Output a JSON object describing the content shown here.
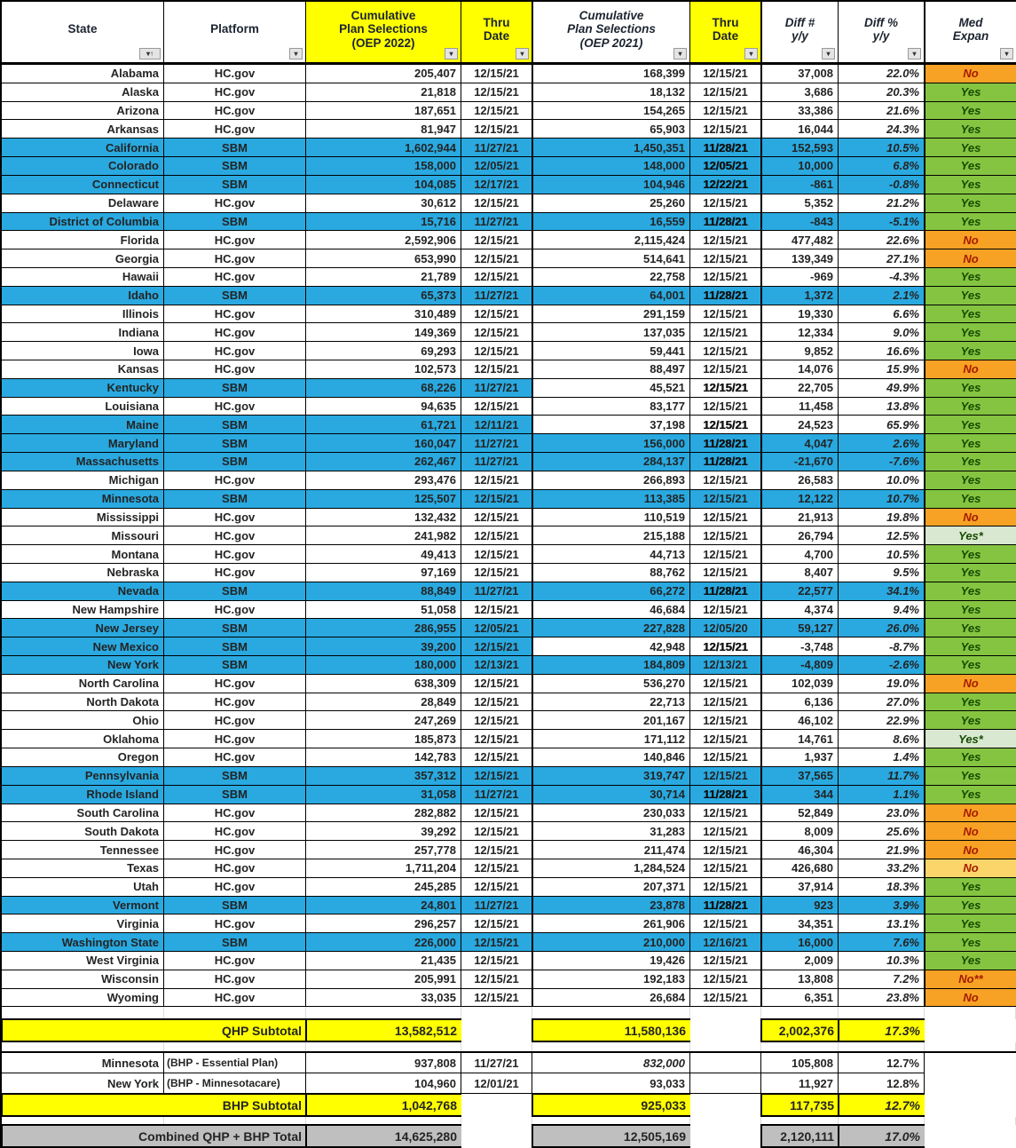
{
  "header": {
    "columns": [
      {
        "lines": [
          "State"
        ],
        "yellow": false,
        "italic": false,
        "filter": "sort-asc"
      },
      {
        "lines": [
          "Platform"
        ],
        "yellow": false,
        "italic": false,
        "filter": "plain"
      },
      {
        "lines": [
          "Cumulative",
          "Plan Selections",
          "(OEP 2022)"
        ],
        "yellow": true,
        "italic": false,
        "filter": "plain"
      },
      {
        "lines": [
          "Thru",
          "Date"
        ],
        "yellow": true,
        "italic": false,
        "filter": "plain"
      },
      {
        "lines": [
          "Cumulative",
          "Plan Selections",
          "(OEP 2021)"
        ],
        "yellow": false,
        "italic": true,
        "filter": "plain"
      },
      {
        "lines": [
          "Thru",
          "Date"
        ],
        "yellow": true,
        "italic": false,
        "filter": "plain"
      },
      {
        "lines": [
          "Diff #",
          "y/y"
        ],
        "yellow": false,
        "italic": true,
        "filter": "plain"
      },
      {
        "lines": [
          "Diff %",
          "y/y"
        ],
        "yellow": false,
        "italic": true,
        "filter": "plain"
      },
      {
        "lines": [
          "Med",
          "Expan"
        ],
        "yellow": false,
        "italic": true,
        "filter": "plain"
      }
    ],
    "filter_icon": "▾",
    "sort_icon": "▾↑"
  },
  "colors": {
    "sbm_row": "#29A9E0",
    "header_yellow": "#FFFF00",
    "med_yes": "#84C441",
    "med_yes_pale": "#D9E8D0",
    "med_no": "#F7A224",
    "med_no_light": "#FBD56A",
    "total_gray": "#BFBFBF"
  },
  "rows": [
    {
      "state": "Alabama",
      "platform": "HC.gov",
      "sel2022": "205,407",
      "thru2022": "12/15/21",
      "sel2021": "168,399",
      "thru2021": "12/15/21",
      "diff": "37,008",
      "diff_pct": "22.0%",
      "med": "No",
      "row_style": "hc",
      "med_style": "no",
      "thru2021_bold": false
    },
    {
      "state": "Alaska",
      "platform": "HC.gov",
      "sel2022": "21,818",
      "thru2022": "12/15/21",
      "sel2021": "18,132",
      "thru2021": "12/15/21",
      "diff": "3,686",
      "diff_pct": "20.3%",
      "med": "Yes",
      "row_style": "hc",
      "med_style": "yes",
      "thru2021_bold": false
    },
    {
      "state": "Arizona",
      "platform": "HC.gov",
      "sel2022": "187,651",
      "thru2022": "12/15/21",
      "sel2021": "154,265",
      "thru2021": "12/15/21",
      "diff": "33,386",
      "diff_pct": "21.6%",
      "med": "Yes",
      "row_style": "hc",
      "med_style": "yes",
      "thru2021_bold": false
    },
    {
      "state": "Arkansas",
      "platform": "HC.gov",
      "sel2022": "81,947",
      "thru2022": "12/15/21",
      "sel2021": "65,903",
      "thru2021": "12/15/21",
      "diff": "16,044",
      "diff_pct": "24.3%",
      "med": "Yes",
      "row_style": "hc",
      "med_style": "yes",
      "thru2021_bold": false
    },
    {
      "state": "California",
      "platform": "SBM",
      "sel2022": "1,602,944",
      "thru2022": "11/27/21",
      "sel2021": "1,450,351",
      "thru2021": "11/28/21",
      "diff": "152,593",
      "diff_pct": "10.5%",
      "med": "Yes",
      "row_style": "sbm",
      "med_style": "yes",
      "thru2021_bold": true
    },
    {
      "state": "Colorado",
      "platform": "SBM",
      "sel2022": "158,000",
      "thru2022": "12/05/21",
      "sel2021": "148,000",
      "thru2021": "12/05/21",
      "diff": "10,000",
      "diff_pct": "6.8%",
      "med": "Yes",
      "row_style": "sbm",
      "med_style": "yes",
      "thru2021_bold": true
    },
    {
      "state": "Connecticut",
      "platform": "SBM",
      "sel2022": "104,085",
      "thru2022": "12/17/21",
      "sel2021": "104,946",
      "thru2021": "12/22/21",
      "diff": "-861",
      "diff_pct": "-0.8%",
      "med": "Yes",
      "row_style": "sbm",
      "med_style": "yes",
      "thru2021_bold": true
    },
    {
      "state": "Delaware",
      "platform": "HC.gov",
      "sel2022": "30,612",
      "thru2022": "12/15/21",
      "sel2021": "25,260",
      "thru2021": "12/15/21",
      "diff": "5,352",
      "diff_pct": "21.2%",
      "med": "Yes",
      "row_style": "hc",
      "med_style": "yes",
      "thru2021_bold": false
    },
    {
      "state": "District of Columbia",
      "platform": "SBM",
      "sel2022": "15,716",
      "thru2022": "11/27/21",
      "sel2021": "16,559",
      "thru2021": "11/28/21",
      "diff": "-843",
      "diff_pct": "-5.1%",
      "med": "Yes",
      "row_style": "sbm",
      "med_style": "yes",
      "thru2021_bold": true
    },
    {
      "state": "Florida",
      "platform": "HC.gov",
      "sel2022": "2,592,906",
      "thru2022": "12/15/21",
      "sel2021": "2,115,424",
      "thru2021": "12/15/21",
      "diff": "477,482",
      "diff_pct": "22.6%",
      "med": "No",
      "row_style": "hc",
      "med_style": "no",
      "thru2021_bold": false
    },
    {
      "state": "Georgia",
      "platform": "HC.gov",
      "sel2022": "653,990",
      "thru2022": "12/15/21",
      "sel2021": "514,641",
      "thru2021": "12/15/21",
      "diff": "139,349",
      "diff_pct": "27.1%",
      "med": "No",
      "row_style": "hc",
      "med_style": "no",
      "thru2021_bold": false
    },
    {
      "state": "Hawaii",
      "platform": "HC.gov",
      "sel2022": "21,789",
      "thru2022": "12/15/21",
      "sel2021": "22,758",
      "thru2021": "12/15/21",
      "diff": "-969",
      "diff_pct": "-4.3%",
      "med": "Yes",
      "row_style": "hc",
      "med_style": "yes",
      "thru2021_bold": false
    },
    {
      "state": "Idaho",
      "platform": "SBM",
      "sel2022": "65,373",
      "thru2022": "11/27/21",
      "sel2021": "64,001",
      "thru2021": "11/28/21",
      "diff": "1,372",
      "diff_pct": "2.1%",
      "med": "Yes",
      "row_style": "sbm",
      "med_style": "yes",
      "thru2021_bold": true
    },
    {
      "state": "Illinois",
      "platform": "HC.gov",
      "sel2022": "310,489",
      "thru2022": "12/15/21",
      "sel2021": "291,159",
      "thru2021": "12/15/21",
      "diff": "19,330",
      "diff_pct": "6.6%",
      "med": "Yes",
      "row_style": "hc",
      "med_style": "yes",
      "thru2021_bold": false
    },
    {
      "state": "Indiana",
      "platform": "HC.gov",
      "sel2022": "149,369",
      "thru2022": "12/15/21",
      "sel2021": "137,035",
      "thru2021": "12/15/21",
      "diff": "12,334",
      "diff_pct": "9.0%",
      "med": "Yes",
      "row_style": "hc",
      "med_style": "yes",
      "thru2021_bold": false
    },
    {
      "state": "Iowa",
      "platform": "HC.gov",
      "sel2022": "69,293",
      "thru2022": "12/15/21",
      "sel2021": "59,441",
      "thru2021": "12/15/21",
      "diff": "9,852",
      "diff_pct": "16.6%",
      "med": "Yes",
      "row_style": "hc",
      "med_style": "yes",
      "thru2021_bold": false
    },
    {
      "state": "Kansas",
      "platform": "HC.gov",
      "sel2022": "102,573",
      "thru2022": "12/15/21",
      "sel2021": "88,497",
      "thru2021": "12/15/21",
      "diff": "14,076",
      "diff_pct": "15.9%",
      "med": "No",
      "row_style": "hc",
      "med_style": "no",
      "thru2021_bold": false
    },
    {
      "state": "Kentucky",
      "platform": "SBM",
      "sel2022": "68,226",
      "thru2022": "11/27/21",
      "sel2021": "45,521",
      "thru2021": "12/15/21",
      "diff": "22,705",
      "diff_pct": "49.9%",
      "med": "Yes",
      "row_style": "sbm2",
      "med_style": "yes",
      "thru2021_bold": true
    },
    {
      "state": "Louisiana",
      "platform": "HC.gov",
      "sel2022": "94,635",
      "thru2022": "12/15/21",
      "sel2021": "83,177",
      "thru2021": "12/15/21",
      "diff": "11,458",
      "diff_pct": "13.8%",
      "med": "Yes",
      "row_style": "hc",
      "med_style": "yes",
      "thru2021_bold": false
    },
    {
      "state": "Maine",
      "platform": "SBM",
      "sel2022": "61,721",
      "thru2022": "12/11/21",
      "sel2021": "37,198",
      "thru2021": "12/15/21",
      "diff": "24,523",
      "diff_pct": "65.9%",
      "med": "Yes",
      "row_style": "sbm2",
      "med_style": "yes",
      "thru2021_bold": true
    },
    {
      "state": "Maryland",
      "platform": "SBM",
      "sel2022": "160,047",
      "thru2022": "11/27/21",
      "sel2021": "156,000",
      "thru2021": "11/28/21",
      "diff": "4,047",
      "diff_pct": "2.6%",
      "med": "Yes",
      "row_style": "sbm",
      "med_style": "yes",
      "thru2021_bold": true
    },
    {
      "state": "Massachusetts",
      "platform": "SBM",
      "sel2022": "262,467",
      "thru2022": "11/27/21",
      "sel2021": "284,137",
      "thru2021": "11/28/21",
      "diff": "-21,670",
      "diff_pct": "-7.6%",
      "med": "Yes",
      "row_style": "sbm",
      "med_style": "yes",
      "thru2021_bold": true
    },
    {
      "state": "Michigan",
      "platform": "HC.gov",
      "sel2022": "293,476",
      "thru2022": "12/15/21",
      "sel2021": "266,893",
      "thru2021": "12/15/21",
      "diff": "26,583",
      "diff_pct": "10.0%",
      "med": "Yes",
      "row_style": "hc",
      "med_style": "yes",
      "thru2021_bold": false
    },
    {
      "state": "Minnesota",
      "platform": "SBM",
      "sel2022": "125,507",
      "thru2022": "12/15/21",
      "sel2021": "113,385",
      "thru2021": "12/15/21",
      "diff": "12,122",
      "diff_pct": "10.7%",
      "med": "Yes",
      "row_style": "sbm",
      "med_style": "yes",
      "thru2021_bold": false
    },
    {
      "state": "Mississippi",
      "platform": "HC.gov",
      "sel2022": "132,432",
      "thru2022": "12/15/21",
      "sel2021": "110,519",
      "thru2021": "12/15/21",
      "diff": "21,913",
      "diff_pct": "19.8%",
      "med": "No",
      "row_style": "hc",
      "med_style": "no",
      "thru2021_bold": false
    },
    {
      "state": "Missouri",
      "platform": "HC.gov",
      "sel2022": "241,982",
      "thru2022": "12/15/21",
      "sel2021": "215,188",
      "thru2021": "12/15/21",
      "diff": "26,794",
      "diff_pct": "12.5%",
      "med": "Yes*",
      "row_style": "hc",
      "med_style": "yes2",
      "thru2021_bold": false
    },
    {
      "state": "Montana",
      "platform": "HC.gov",
      "sel2022": "49,413",
      "thru2022": "12/15/21",
      "sel2021": "44,713",
      "thru2021": "12/15/21",
      "diff": "4,700",
      "diff_pct": "10.5%",
      "med": "Yes",
      "row_style": "hc",
      "med_style": "yes",
      "thru2021_bold": false
    },
    {
      "state": "Nebraska",
      "platform": "HC.gov",
      "sel2022": "97,169",
      "thru2022": "12/15/21",
      "sel2021": "88,762",
      "thru2021": "12/15/21",
      "diff": "8,407",
      "diff_pct": "9.5%",
      "med": "Yes",
      "row_style": "hc",
      "med_style": "yes",
      "thru2021_bold": false
    },
    {
      "state": "Nevada",
      "platform": "SBM",
      "sel2022": "88,849",
      "thru2022": "11/27/21",
      "sel2021": "66,272",
      "thru2021": "11/28/21",
      "diff": "22,577",
      "diff_pct": "34.1%",
      "med": "Yes",
      "row_style": "sbm",
      "med_style": "yes",
      "thru2021_bold": true
    },
    {
      "state": "New Hampshire",
      "platform": "HC.gov",
      "sel2022": "51,058",
      "thru2022": "12/15/21",
      "sel2021": "46,684",
      "thru2021": "12/15/21",
      "diff": "4,374",
      "diff_pct": "9.4%",
      "med": "Yes",
      "row_style": "hc",
      "med_style": "yes",
      "thru2021_bold": false
    },
    {
      "state": "New Jersey",
      "platform": "SBM",
      "sel2022": "286,955",
      "thru2022": "12/05/21",
      "sel2021": "227,828",
      "thru2021": "12/05/20",
      "diff": "59,127",
      "diff_pct": "26.0%",
      "med": "Yes",
      "row_style": "sbm",
      "med_style": "yes",
      "thru2021_bold": false
    },
    {
      "state": "New Mexico",
      "platform": "SBM",
      "sel2022": "39,200",
      "thru2022": "12/15/21",
      "sel2021": "42,948",
      "thru2021": "12/15/21",
      "diff": "-3,748",
      "diff_pct": "-8.7%",
      "med": "Yes",
      "row_style": "sbm2",
      "med_style": "yes",
      "thru2021_bold": true
    },
    {
      "state": "New York",
      "platform": "SBM",
      "sel2022": "180,000",
      "thru2022": "12/13/21",
      "sel2021": "184,809",
      "thru2021": "12/13/21",
      "diff": "-4,809",
      "diff_pct": "-2.6%",
      "med": "Yes",
      "row_style": "sbm",
      "med_style": "yes",
      "thru2021_bold": false
    },
    {
      "state": "North Carolina",
      "platform": "HC.gov",
      "sel2022": "638,309",
      "thru2022": "12/15/21",
      "sel2021": "536,270",
      "thru2021": "12/15/21",
      "diff": "102,039",
      "diff_pct": "19.0%",
      "med": "No",
      "row_style": "hc",
      "med_style": "no",
      "thru2021_bold": false
    },
    {
      "state": "North Dakota",
      "platform": "HC.gov",
      "sel2022": "28,849",
      "thru2022": "12/15/21",
      "sel2021": "22,713",
      "thru2021": "12/15/21",
      "diff": "6,136",
      "diff_pct": "27.0%",
      "med": "Yes",
      "row_style": "hc",
      "med_style": "yes",
      "thru2021_bold": false
    },
    {
      "state": "Ohio",
      "platform": "HC.gov",
      "sel2022": "247,269",
      "thru2022": "12/15/21",
      "sel2021": "201,167",
      "thru2021": "12/15/21",
      "diff": "46,102",
      "diff_pct": "22.9%",
      "med": "Yes",
      "row_style": "hc",
      "med_style": "yes",
      "thru2021_bold": false
    },
    {
      "state": "Oklahoma",
      "platform": "HC.gov",
      "sel2022": "185,873",
      "thru2022": "12/15/21",
      "sel2021": "171,112",
      "thru2021": "12/15/21",
      "diff": "14,761",
      "diff_pct": "8.6%",
      "med": "Yes*",
      "row_style": "hc",
      "med_style": "yes2",
      "thru2021_bold": false
    },
    {
      "state": "Oregon",
      "platform": "HC.gov",
      "sel2022": "142,783",
      "thru2022": "12/15/21",
      "sel2021": "140,846",
      "thru2021": "12/15/21",
      "diff": "1,937",
      "diff_pct": "1.4%",
      "med": "Yes",
      "row_style": "hc",
      "med_style": "yes",
      "thru2021_bold": false
    },
    {
      "state": "Pennsylvania",
      "platform": "SBM",
      "sel2022": "357,312",
      "thru2022": "12/15/21",
      "sel2021": "319,747",
      "thru2021": "12/15/21",
      "diff": "37,565",
      "diff_pct": "11.7%",
      "med": "Yes",
      "row_style": "sbm",
      "med_style": "yes",
      "thru2021_bold": false
    },
    {
      "state": "Rhode Island",
      "platform": "SBM",
      "sel2022": "31,058",
      "thru2022": "11/27/21",
      "sel2021": "30,714",
      "thru2021": "11/28/21",
      "diff": "344",
      "diff_pct": "1.1%",
      "med": "Yes",
      "row_style": "sbm",
      "med_style": "yes",
      "thru2021_bold": true
    },
    {
      "state": "South Carolina",
      "platform": "HC.gov",
      "sel2022": "282,882",
      "thru2022": "12/15/21",
      "sel2021": "230,033",
      "thru2021": "12/15/21",
      "diff": "52,849",
      "diff_pct": "23.0%",
      "med": "No",
      "row_style": "hc",
      "med_style": "no",
      "thru2021_bold": false
    },
    {
      "state": "South Dakota",
      "platform": "HC.gov",
      "sel2022": "39,292",
      "thru2022": "12/15/21",
      "sel2021": "31,283",
      "thru2021": "12/15/21",
      "diff": "8,009",
      "diff_pct": "25.6%",
      "med": "No",
      "row_style": "hc",
      "med_style": "no",
      "thru2021_bold": false
    },
    {
      "state": "Tennessee",
      "platform": "HC.gov",
      "sel2022": "257,778",
      "thru2022": "12/15/21",
      "sel2021": "211,474",
      "thru2021": "12/15/21",
      "diff": "46,304",
      "diff_pct": "21.9%",
      "med": "No",
      "row_style": "hc",
      "med_style": "no",
      "thru2021_bold": false
    },
    {
      "state": "Texas",
      "platform": "HC.gov",
      "sel2022": "1,711,204",
      "thru2022": "12/15/21",
      "sel2021": "1,284,524",
      "thru2021": "12/15/21",
      "diff": "426,680",
      "diff_pct": "33.2%",
      "med": "No",
      "row_style": "hc",
      "med_style": "no2",
      "thru2021_bold": false
    },
    {
      "state": "Utah",
      "platform": "HC.gov",
      "sel2022": "245,285",
      "thru2022": "12/15/21",
      "sel2021": "207,371",
      "thru2021": "12/15/21",
      "diff": "37,914",
      "diff_pct": "18.3%",
      "med": "Yes",
      "row_style": "hc",
      "med_style": "yes",
      "thru2021_bold": false
    },
    {
      "state": "Vermont",
      "platform": "SBM",
      "sel2022": "24,801",
      "thru2022": "11/27/21",
      "sel2021": "23,878",
      "thru2021": "11/28/21",
      "diff": "923",
      "diff_pct": "3.9%",
      "med": "Yes",
      "row_style": "sbm",
      "med_style": "yes",
      "thru2021_bold": true
    },
    {
      "state": "Virginia",
      "platform": "HC.gov",
      "sel2022": "296,257",
      "thru2022": "12/15/21",
      "sel2021": "261,906",
      "thru2021": "12/15/21",
      "diff": "34,351",
      "diff_pct": "13.1%",
      "med": "Yes",
      "row_style": "hc",
      "med_style": "yes",
      "thru2021_bold": false
    },
    {
      "state": "Washington State",
      "platform": "SBM",
      "sel2022": "226,000",
      "thru2022": "12/15/21",
      "sel2021": "210,000",
      "thru2021": "12/16/21",
      "diff": "16,000",
      "diff_pct": "7.6%",
      "med": "Yes",
      "row_style": "sbm",
      "med_style": "yes",
      "thru2021_bold": false
    },
    {
      "state": "West Virginia",
      "platform": "HC.gov",
      "sel2022": "21,435",
      "thru2022": "12/15/21",
      "sel2021": "19,426",
      "thru2021": "12/15/21",
      "diff": "2,009",
      "diff_pct": "10.3%",
      "med": "Yes",
      "row_style": "hc",
      "med_style": "yes",
      "thru2021_bold": false
    },
    {
      "state": "Wisconsin",
      "platform": "HC.gov",
      "sel2022": "205,991",
      "thru2022": "12/15/21",
      "sel2021": "192,183",
      "thru2021": "12/15/21",
      "diff": "13,808",
      "diff_pct": "7.2%",
      "med": "No**",
      "row_style": "hc",
      "med_style": "no",
      "thru2021_bold": false
    },
    {
      "state": "Wyoming",
      "platform": "HC.gov",
      "sel2022": "33,035",
      "thru2022": "12/15/21",
      "sel2021": "26,684",
      "thru2021": "12/15/21",
      "diff": "6,351",
      "diff_pct": "23.8%",
      "med": "No",
      "row_style": "hc",
      "med_style": "no",
      "thru2021_bold": false
    }
  ],
  "qhp_subtotal": {
    "label": "QHP Subtotal",
    "sel2022": "13,582,512",
    "sel2021": "11,580,136",
    "diff": "2,002,376",
    "diff_pct": "17.3%"
  },
  "bhp_rows": [
    {
      "state": "Minnesota",
      "program": "(BHP - Essential Plan)",
      "sel2022": "937,808",
      "thru": "11/27/21",
      "sel2021": "832,000",
      "sel2021_italic": true,
      "diff": "105,808",
      "diff_pct": "12.7%"
    },
    {
      "state": "New York",
      "program": "(BHP - Minnesotacare)",
      "sel2022": "104,960",
      "thru": "12/01/21",
      "sel2021": "93,033",
      "sel2021_italic": false,
      "diff": "11,927",
      "diff_pct": "12.8%"
    }
  ],
  "bhp_subtotal": {
    "label": "BHP Subtotal",
    "sel2022": "1,042,768",
    "sel2021": "925,033",
    "diff": "117,735",
    "diff_pct": "12.7%"
  },
  "combined_total": {
    "label": "Combined QHP + BHP Total",
    "sel2022": "14,625,280",
    "sel2021": "12,505,169",
    "diff": "2,120,111",
    "diff_pct": "17.0%"
  }
}
